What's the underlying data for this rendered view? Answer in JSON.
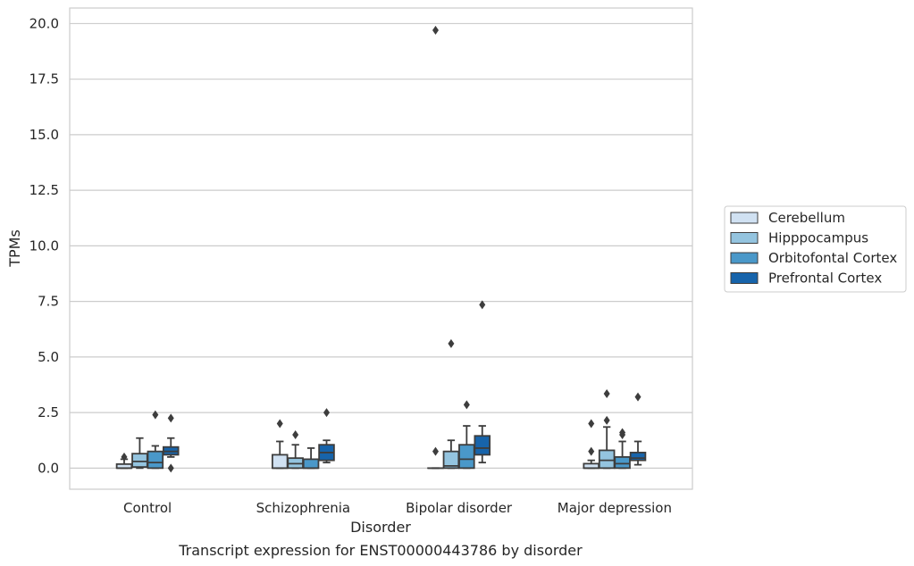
{
  "chart_data": {
    "type": "box",
    "xlabel": "Disorder",
    "ylabel": "TPMs",
    "caption": "Transcript expression for ENST00000443786 by disorder",
    "ylim": [
      -0.95,
      20.7
    ],
    "yticks": [
      "0.0",
      "2.5",
      "5.0",
      "7.5",
      "10.0",
      "12.5",
      "15.0",
      "17.5",
      "20.0"
    ],
    "grid": "horizontal",
    "legend_position": "right",
    "categories": [
      "Control",
      "Schizophrenia",
      "Bipolar disorder",
      "Major depression"
    ],
    "series": [
      {
        "name": "Cerebellum",
        "color": "#d0e1f2",
        "boxes": [
          {
            "whislo": 0.0,
            "q1": 0.0,
            "med": 0.0,
            "q3": 0.18,
            "whishi": 0.4,
            "fliers": [
              0.5
            ]
          },
          {
            "whislo": 0.0,
            "q1": 0.0,
            "med": 0.0,
            "q3": 0.6,
            "whishi": 1.2,
            "fliers": [
              2.0
            ]
          },
          {
            "whislo": 0.0,
            "q1": 0.0,
            "med": 0.0,
            "q3": 0.0,
            "whishi": 0.0,
            "fliers": [
              0.75,
              19.7
            ]
          },
          {
            "whislo": 0.0,
            "q1": 0.0,
            "med": 0.0,
            "q3": 0.2,
            "whishi": 0.35,
            "fliers": [
              0.75,
              2.0
            ]
          }
        ]
      },
      {
        "name": "Hipppocampus",
        "color": "#94c4df",
        "boxes": [
          {
            "whislo": 0.0,
            "q1": 0.05,
            "med": 0.3,
            "q3": 0.65,
            "whishi": 1.35,
            "fliers": []
          },
          {
            "whislo": 0.0,
            "q1": 0.0,
            "med": 0.2,
            "q3": 0.45,
            "whishi": 1.05,
            "fliers": [
              1.5
            ]
          },
          {
            "whislo": 0.0,
            "q1": 0.0,
            "med": 0.1,
            "q3": 0.75,
            "whishi": 1.25,
            "fliers": [
              5.6
            ]
          },
          {
            "whislo": 0.0,
            "q1": 0.0,
            "med": 0.35,
            "q3": 0.8,
            "whishi": 1.85,
            "fliers": [
              2.15,
              3.35
            ]
          }
        ]
      },
      {
        "name": "Orbitofontal Cortex",
        "color": "#4a98c9",
        "boxes": [
          {
            "whislo": 0.0,
            "q1": 0.0,
            "med": 0.25,
            "q3": 0.75,
            "whishi": 1.0,
            "fliers": [
              2.4
            ]
          },
          {
            "whislo": 0.0,
            "q1": 0.0,
            "med": 0.0,
            "q3": 0.4,
            "whishi": 0.9,
            "fliers": []
          },
          {
            "whislo": 0.0,
            "q1": 0.0,
            "med": 0.4,
            "q3": 1.05,
            "whishi": 1.9,
            "fliers": [
              2.85
            ]
          },
          {
            "whislo": 0.0,
            "q1": 0.0,
            "med": 0.2,
            "q3": 0.5,
            "whishi": 1.2,
            "fliers": [
              1.5,
              1.6
            ]
          }
        ]
      },
      {
        "name": "Prefrontal Cortex",
        "color": "#1764ab",
        "boxes": [
          {
            "whislo": 0.5,
            "q1": 0.6,
            "med": 0.75,
            "q3": 0.95,
            "whishi": 1.35,
            "fliers": [
              2.25,
              0.0
            ]
          },
          {
            "whislo": 0.25,
            "q1": 0.35,
            "med": 0.7,
            "q3": 1.05,
            "whishi": 1.25,
            "fliers": [
              2.5
            ]
          },
          {
            "whislo": 0.25,
            "q1": 0.6,
            "med": 0.9,
            "q3": 1.45,
            "whishi": 1.9,
            "fliers": [
              7.35
            ]
          },
          {
            "whislo": 0.15,
            "q1": 0.35,
            "med": 0.45,
            "q3": 0.7,
            "whishi": 1.2,
            "fliers": [
              3.2
            ]
          }
        ]
      }
    ]
  }
}
